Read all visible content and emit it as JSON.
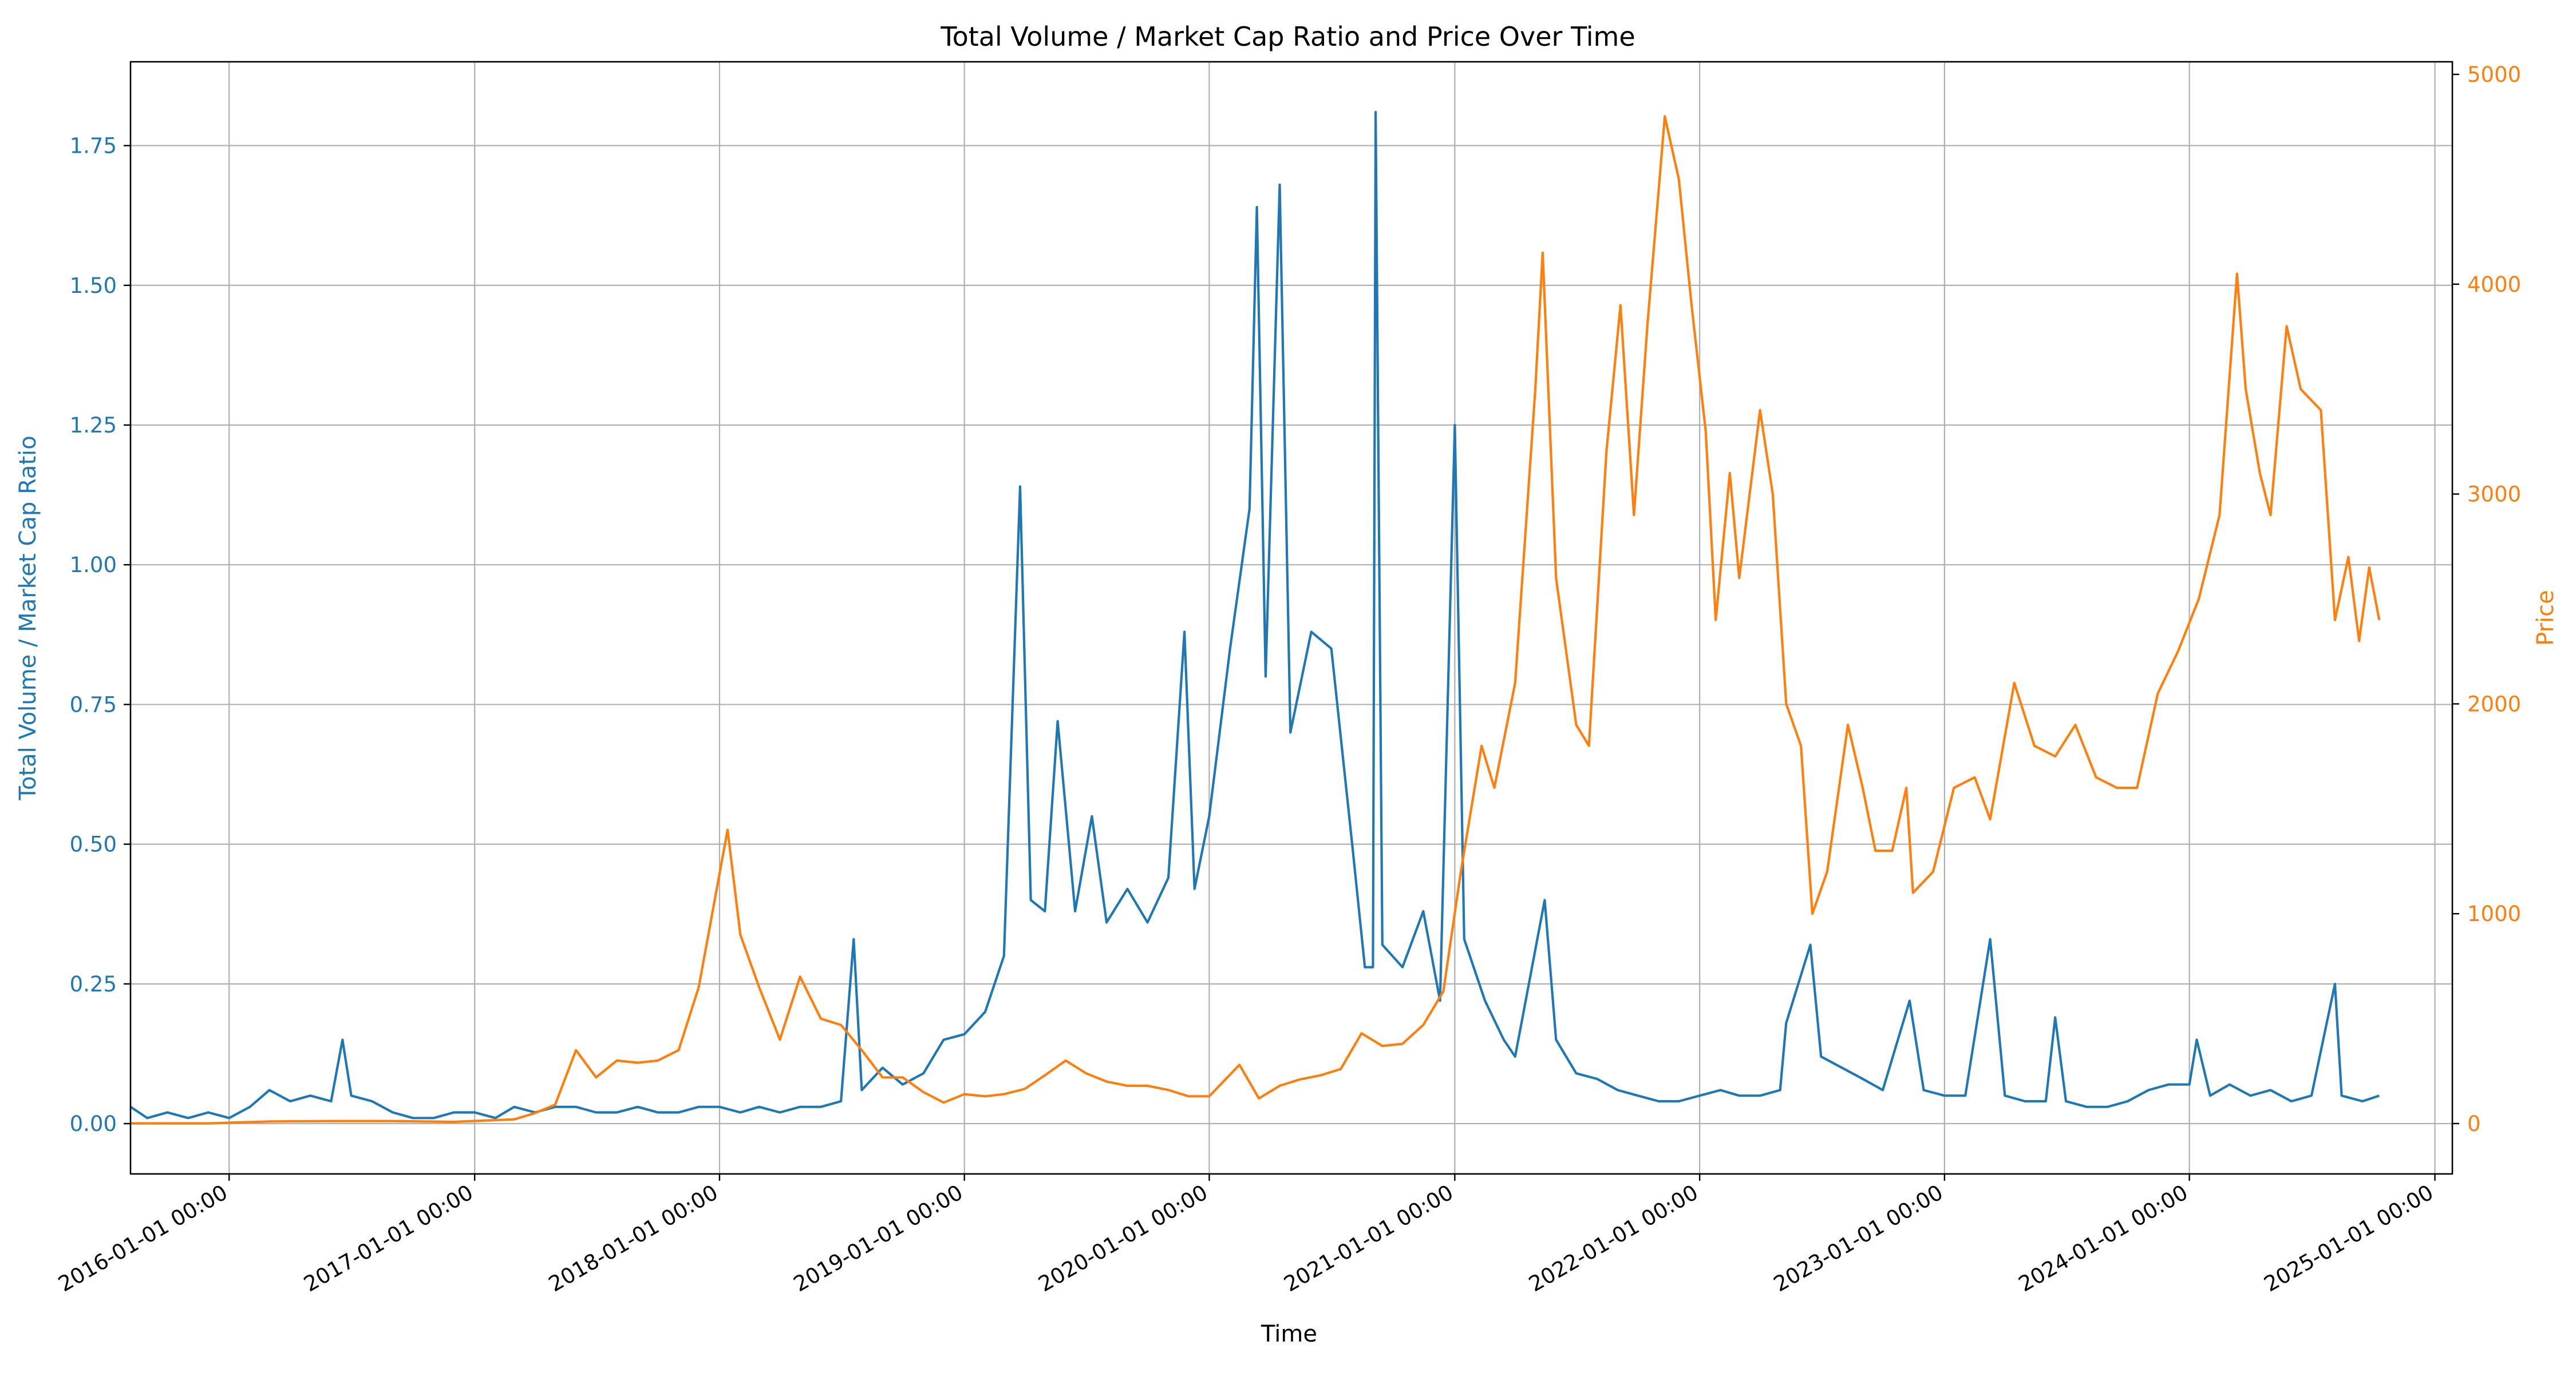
{
  "chart_data": {
    "type": "line",
    "title": "Total Volume / Market Cap Ratio and Price Over Time",
    "xlabel": "Time",
    "x_range": [
      "2015-08-07",
      "2025-01-27"
    ],
    "x_ticks": [
      "2016-01-01 00:00",
      "2017-01-01 00:00",
      "2018-01-01 00:00",
      "2019-01-01 00:00",
      "2020-01-01 00:00",
      "2021-01-01 00:00",
      "2022-01-01 00:00",
      "2023-01-01 00:00",
      "2024-01-01 00:00",
      "2025-01-01 00:00"
    ],
    "grid": true,
    "left_axis": {
      "label": "Total Volume / Market Cap Ratio",
      "color": "#1f77b4",
      "ylim": [
        -0.09,
        1.9
      ],
      "ticks": [
        "0.00",
        "0.25",
        "0.50",
        "0.75",
        "1.00",
        "1.25",
        "1.50",
        "1.75"
      ]
    },
    "right_axis": {
      "label": "Price",
      "color": "#ff7f0e",
      "ylim": [
        -240,
        5060
      ],
      "ticks": [
        "0",
        "1000",
        "2000",
        "3000",
        "4000",
        "5000"
      ]
    },
    "series": [
      {
        "axis": "left",
        "color": "#1f77b4",
        "points": [
          [
            "2015-08-07",
            0.03
          ],
          [
            "2015-09-01",
            0.01
          ],
          [
            "2015-10-01",
            0.02
          ],
          [
            "2015-11-01",
            0.01
          ],
          [
            "2015-12-01",
            0.02
          ],
          [
            "2016-01-01",
            0.01
          ],
          [
            "2016-02-01",
            0.03
          ],
          [
            "2016-03-01",
            0.06
          ],
          [
            "2016-04-01",
            0.04
          ],
          [
            "2016-05-01",
            0.05
          ],
          [
            "2016-06-01",
            0.04
          ],
          [
            "2016-06-18",
            0.15
          ],
          [
            "2016-07-01",
            0.05
          ],
          [
            "2016-08-01",
            0.04
          ],
          [
            "2016-09-01",
            0.02
          ],
          [
            "2016-10-01",
            0.01
          ],
          [
            "2016-11-01",
            0.01
          ],
          [
            "2016-12-01",
            0.02
          ],
          [
            "2017-01-01",
            0.02
          ],
          [
            "2017-02-01",
            0.01
          ],
          [
            "2017-03-01",
            0.03
          ],
          [
            "2017-04-01",
            0.02
          ],
          [
            "2017-05-01",
            0.03
          ],
          [
            "2017-06-01",
            0.03
          ],
          [
            "2017-07-01",
            0.02
          ],
          [
            "2017-08-01",
            0.02
          ],
          [
            "2017-09-01",
            0.03
          ],
          [
            "2017-10-01",
            0.02
          ],
          [
            "2017-11-01",
            0.02
          ],
          [
            "2017-12-01",
            0.03
          ],
          [
            "2018-01-01",
            0.03
          ],
          [
            "2018-02-01",
            0.02
          ],
          [
            "2018-03-01",
            0.03
          ],
          [
            "2018-04-01",
            0.02
          ],
          [
            "2018-05-01",
            0.03
          ],
          [
            "2018-06-01",
            0.03
          ],
          [
            "2018-07-01",
            0.04
          ],
          [
            "2018-07-20",
            0.33
          ],
          [
            "2018-08-01",
            0.06
          ],
          [
            "2018-09-01",
            0.1
          ],
          [
            "2018-10-01",
            0.07
          ],
          [
            "2018-11-01",
            0.09
          ],
          [
            "2018-12-01",
            0.15
          ],
          [
            "2019-01-01",
            0.16
          ],
          [
            "2019-02-01",
            0.2
          ],
          [
            "2019-03-01",
            0.3
          ],
          [
            "2019-03-25",
            1.14
          ],
          [
            "2019-04-10",
            0.4
          ],
          [
            "2019-05-01",
            0.38
          ],
          [
            "2019-05-20",
            0.72
          ],
          [
            "2019-06-15",
            0.38
          ],
          [
            "2019-07-10",
            0.55
          ],
          [
            "2019-08-01",
            0.36
          ],
          [
            "2019-09-01",
            0.42
          ],
          [
            "2019-10-01",
            0.36
          ],
          [
            "2019-11-01",
            0.44
          ],
          [
            "2019-11-25",
            0.88
          ],
          [
            "2019-12-10",
            0.42
          ],
          [
            "2020-01-01",
            0.55
          ],
          [
            "2020-02-01",
            0.85
          ],
          [
            "2020-03-01",
            1.1
          ],
          [
            "2020-03-12",
            1.64
          ],
          [
            "2020-03-25",
            0.8
          ],
          [
            "2020-04-15",
            1.68
          ],
          [
            "2020-05-01",
            0.7
          ],
          [
            "2020-06-01",
            0.88
          ],
          [
            "2020-07-01",
            0.85
          ],
          [
            "2020-08-01",
            0.5
          ],
          [
            "2020-08-20",
            0.28
          ],
          [
            "2020-09-01",
            0.28
          ],
          [
            "2020-09-05",
            1.81
          ],
          [
            "2020-09-15",
            0.32
          ],
          [
            "2020-10-15",
            0.28
          ],
          [
            "2020-11-15",
            0.38
          ],
          [
            "2020-12-10",
            0.22
          ],
          [
            "2021-01-01",
            1.25
          ],
          [
            "2021-01-15",
            0.33
          ],
          [
            "2021-02-15",
            0.22
          ],
          [
            "2021-03-15",
            0.15
          ],
          [
            "2021-04-01",
            0.12
          ],
          [
            "2021-05-15",
            0.4
          ],
          [
            "2021-06-01",
            0.15
          ],
          [
            "2021-07-01",
            0.09
          ],
          [
            "2021-08-01",
            0.08
          ],
          [
            "2021-09-01",
            0.06
          ],
          [
            "2021-10-01",
            0.05
          ],
          [
            "2021-11-01",
            0.04
          ],
          [
            "2021-12-01",
            0.04
          ],
          [
            "2022-01-01",
            0.05
          ],
          [
            "2022-02-01",
            0.06
          ],
          [
            "2022-03-01",
            0.05
          ],
          [
            "2022-04-01",
            0.05
          ],
          [
            "2022-05-01",
            0.06
          ],
          [
            "2022-05-10",
            0.18
          ],
          [
            "2022-06-15",
            0.32
          ],
          [
            "2022-07-01",
            0.12
          ],
          [
            "2022-08-01",
            0.1
          ],
          [
            "2022-09-01",
            0.08
          ],
          [
            "2022-10-01",
            0.06
          ],
          [
            "2022-11-10",
            0.22
          ],
          [
            "2022-12-01",
            0.06
          ],
          [
            "2023-01-01",
            0.05
          ],
          [
            "2023-02-01",
            0.05
          ],
          [
            "2023-03-10",
            0.33
          ],
          [
            "2023-04-01",
            0.05
          ],
          [
            "2023-05-01",
            0.04
          ],
          [
            "2023-06-01",
            0.04
          ],
          [
            "2023-06-15",
            0.19
          ],
          [
            "2023-07-01",
            0.04
          ],
          [
            "2023-08-01",
            0.03
          ],
          [
            "2023-09-01",
            0.03
          ],
          [
            "2023-10-01",
            0.04
          ],
          [
            "2023-11-01",
            0.06
          ],
          [
            "2023-12-01",
            0.07
          ],
          [
            "2024-01-01",
            0.07
          ],
          [
            "2024-01-12",
            0.15
          ],
          [
            "2024-02-01",
            0.05
          ],
          [
            "2024-03-01",
            0.07
          ],
          [
            "2024-04-01",
            0.05
          ],
          [
            "2024-05-01",
            0.06
          ],
          [
            "2024-06-01",
            0.04
          ],
          [
            "2024-07-01",
            0.05
          ],
          [
            "2024-08-05",
            0.25
          ],
          [
            "2024-08-15",
            0.05
          ],
          [
            "2024-09-15",
            0.04
          ],
          [
            "2024-10-10",
            0.05
          ]
        ]
      },
      {
        "axis": "right",
        "color": "#ff7f0e",
        "points": [
          [
            "2015-08-07",
            1
          ],
          [
            "2015-12-01",
            1
          ],
          [
            "2016-03-01",
            10
          ],
          [
            "2016-06-01",
            12
          ],
          [
            "2016-09-01",
            12
          ],
          [
            "2016-12-01",
            8
          ],
          [
            "2017-03-01",
            20
          ],
          [
            "2017-04-01",
            50
          ],
          [
            "2017-05-01",
            90
          ],
          [
            "2017-06-01",
            350
          ],
          [
            "2017-07-01",
            220
          ],
          [
            "2017-08-01",
            300
          ],
          [
            "2017-09-01",
            290
          ],
          [
            "2017-10-01",
            300
          ],
          [
            "2017-11-01",
            350
          ],
          [
            "2017-12-01",
            650
          ],
          [
            "2018-01-13",
            1400
          ],
          [
            "2018-02-01",
            900
          ],
          [
            "2018-03-01",
            650
          ],
          [
            "2018-04-01",
            400
          ],
          [
            "2018-05-01",
            700
          ],
          [
            "2018-06-01",
            500
          ],
          [
            "2018-07-01",
            470
          ],
          [
            "2018-08-01",
            350
          ],
          [
            "2018-09-01",
            220
          ],
          [
            "2018-10-01",
            220
          ],
          [
            "2018-11-01",
            150
          ],
          [
            "2018-12-01",
            100
          ],
          [
            "2019-01-01",
            140
          ],
          [
            "2019-02-01",
            130
          ],
          [
            "2019-03-01",
            140
          ],
          [
            "2019-04-01",
            165
          ],
          [
            "2019-05-01",
            230
          ],
          [
            "2019-06-01",
            300
          ],
          [
            "2019-07-01",
            240
          ],
          [
            "2019-08-01",
            200
          ],
          [
            "2019-09-01",
            180
          ],
          [
            "2019-10-01",
            180
          ],
          [
            "2019-11-01",
            160
          ],
          [
            "2019-12-01",
            130
          ],
          [
            "2020-01-01",
            130
          ],
          [
            "2020-02-15",
            280
          ],
          [
            "2020-03-15",
            120
          ],
          [
            "2020-04-15",
            180
          ],
          [
            "2020-05-15",
            210
          ],
          [
            "2020-06-15",
            230
          ],
          [
            "2020-07-15",
            260
          ],
          [
            "2020-08-15",
            430
          ],
          [
            "2020-09-15",
            370
          ],
          [
            "2020-10-15",
            380
          ],
          [
            "2020-11-15",
            470
          ],
          [
            "2020-12-15",
            630
          ],
          [
            "2021-01-10",
            1200
          ],
          [
            "2021-02-10",
            1800
          ],
          [
            "2021-03-01",
            1600
          ],
          [
            "2021-04-01",
            2100
          ],
          [
            "2021-05-01",
            3500
          ],
          [
            "2021-05-12",
            4150
          ],
          [
            "2021-06-01",
            2600
          ],
          [
            "2021-07-01",
            1900
          ],
          [
            "2021-07-20",
            1800
          ],
          [
            "2021-08-15",
            3200
          ],
          [
            "2021-09-05",
            3900
          ],
          [
            "2021-09-25",
            2900
          ],
          [
            "2021-10-15",
            3800
          ],
          [
            "2021-11-10",
            4800
          ],
          [
            "2021-12-01",
            4500
          ],
          [
            "2021-12-20",
            3900
          ],
          [
            "2022-01-10",
            3300
          ],
          [
            "2022-01-25",
            2400
          ],
          [
            "2022-02-15",
            3100
          ],
          [
            "2022-03-01",
            2600
          ],
          [
            "2022-04-01",
            3400
          ],
          [
            "2022-04-20",
            3000
          ],
          [
            "2022-05-10",
            2000
          ],
          [
            "2022-06-01",
            1800
          ],
          [
            "2022-06-18",
            1000
          ],
          [
            "2022-07-10",
            1200
          ],
          [
            "2022-08-10",
            1900
          ],
          [
            "2022-09-01",
            1600
          ],
          [
            "2022-09-20",
            1300
          ],
          [
            "2022-10-15",
            1300
          ],
          [
            "2022-11-05",
            1600
          ],
          [
            "2022-11-15",
            1100
          ],
          [
            "2022-12-15",
            1200
          ],
          [
            "2023-01-15",
            1600
          ],
          [
            "2023-02-15",
            1650
          ],
          [
            "2023-03-10",
            1450
          ],
          [
            "2023-04-15",
            2100
          ],
          [
            "2023-05-15",
            1800
          ],
          [
            "2023-06-15",
            1750
          ],
          [
            "2023-07-15",
            1900
          ],
          [
            "2023-08-15",
            1650
          ],
          [
            "2023-09-15",
            1600
          ],
          [
            "2023-10-15",
            1600
          ],
          [
            "2023-11-15",
            2050
          ],
          [
            "2023-12-15",
            2250
          ],
          [
            "2024-01-15",
            2500
          ],
          [
            "2024-02-15",
            2900
          ],
          [
            "2024-03-12",
            4050
          ],
          [
            "2024-03-25",
            3500
          ],
          [
            "2024-04-15",
            3100
          ],
          [
            "2024-05-01",
            2900
          ],
          [
            "2024-05-25",
            3800
          ],
          [
            "2024-06-15",
            3500
          ],
          [
            "2024-07-15",
            3400
          ],
          [
            "2024-08-05",
            2400
          ],
          [
            "2024-08-25",
            2700
          ],
          [
            "2024-09-10",
            2300
          ],
          [
            "2024-09-25",
            2650
          ],
          [
            "2024-10-10",
            2400
          ]
        ]
      }
    ]
  }
}
